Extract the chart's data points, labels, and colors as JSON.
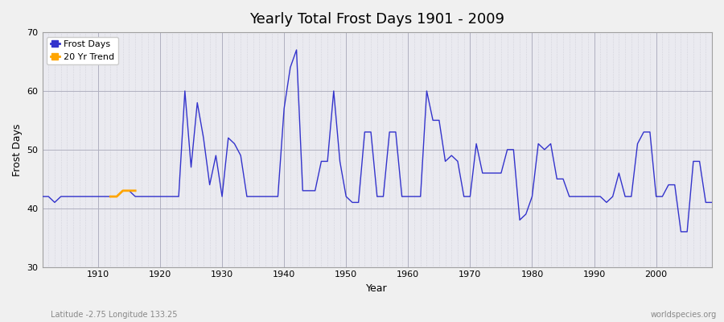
{
  "title": "Yearly Total Frost Days 1901 - 2009",
  "xlabel": "Year",
  "ylabel": "Frost Days",
  "xlim": [
    1901,
    2009
  ],
  "ylim": [
    30,
    70
  ],
  "yticks": [
    30,
    40,
    50,
    60,
    70
  ],
  "xticks": [
    1910,
    1920,
    1930,
    1940,
    1950,
    1960,
    1970,
    1980,
    1990,
    2000
  ],
  "plot_bg_color": "#eaeaf0",
  "fig_bg_color": "#f0f0f0",
  "line_color": "#3333cc",
  "trend_color": "#ffa500",
  "frost_days": {
    "1901": 42,
    "1902": 42,
    "1903": 41,
    "1904": 42,
    "1905": 42,
    "1906": 42,
    "1907": 42,
    "1908": 42,
    "1909": 42,
    "1910": 42,
    "1911": 42,
    "1912": 42,
    "1913": 42,
    "1914": 43,
    "1915": 43,
    "1916": 42,
    "1917": 42,
    "1918": 42,
    "1919": 42,
    "1920": 42,
    "1921": 42,
    "1922": 42,
    "1923": 42,
    "1924": 60,
    "1925": 47,
    "1926": 58,
    "1927": 52,
    "1928": 44,
    "1929": 49,
    "1930": 42,
    "1931": 52,
    "1932": 51,
    "1933": 49,
    "1934": 42,
    "1935": 42,
    "1936": 42,
    "1937": 42,
    "1938": 42,
    "1939": 42,
    "1940": 57,
    "1941": 64,
    "1942": 67,
    "1943": 43,
    "1944": 43,
    "1945": 43,
    "1946": 48,
    "1947": 48,
    "1948": 60,
    "1949": 48,
    "1950": 42,
    "1951": 41,
    "1952": 41,
    "1953": 53,
    "1954": 53,
    "1955": 42,
    "1956": 42,
    "1957": 53,
    "1958": 53,
    "1959": 42,
    "1960": 42,
    "1961": 42,
    "1962": 42,
    "1963": 60,
    "1964": 55,
    "1965": 55,
    "1966": 48,
    "1967": 49,
    "1968": 48,
    "1969": 42,
    "1970": 42,
    "1971": 51,
    "1972": 46,
    "1973": 46,
    "1974": 46,
    "1975": 46,
    "1976": 50,
    "1977": 50,
    "1978": 38,
    "1979": 39,
    "1980": 42,
    "1981": 51,
    "1982": 50,
    "1983": 51,
    "1984": 45,
    "1985": 45,
    "1986": 42,
    "1987": 42,
    "1988": 42,
    "1989": 42,
    "1990": 42,
    "1991": 42,
    "1992": 41,
    "1993": 42,
    "1994": 46,
    "1995": 42,
    "1996": 42,
    "1997": 51,
    "1998": 53,
    "1999": 53,
    "2000": 42,
    "2001": 42,
    "2002": 44,
    "2003": 44,
    "2004": 36,
    "2005": 36,
    "2006": 48,
    "2007": 48,
    "2008": 41,
    "2009": 41
  },
  "trend_data_x": [
    1912,
    1913,
    1914,
    1915,
    1916
  ],
  "trend_data_y": [
    42,
    42,
    43,
    43,
    43
  ],
  "subtitle": "Latitude -2.75 Longitude 133.25",
  "watermark": "worldspecies.org",
  "title_fontsize": 13,
  "axis_label_fontsize": 9,
  "tick_fontsize": 8,
  "legend_fontsize": 8
}
